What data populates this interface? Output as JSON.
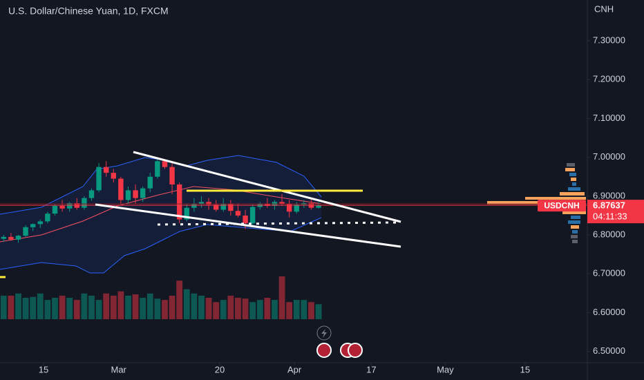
{
  "chart_data": {
    "type": "candlestick",
    "title": "U.S. Dollar/Chinese Yuan, 1D, FXCM",
    "currency": "CNH",
    "symbol": "USDCNH",
    "last_price": 6.87637,
    "countdown": "04:11:33",
    "up_color": "#089981",
    "down_color": "#f23645",
    "ylim": [
      6.471,
      7.405
    ],
    "yticks": [
      {
        "value": 7.3,
        "label": "7.30000"
      },
      {
        "value": 7.2,
        "label": "7.20000"
      },
      {
        "value": 7.1,
        "label": "7.10000"
      },
      {
        "value": 7.0,
        "label": "7.00000"
      },
      {
        "value": 6.9,
        "label": "6.90000"
      },
      {
        "value": 6.8,
        "label": "6.80000"
      },
      {
        "value": 6.7,
        "label": "6.70000"
      },
      {
        "value": 6.6,
        "label": "6.60000"
      },
      {
        "value": 6.5,
        "label": "6.50000"
      }
    ],
    "xlim": [
      -0.5,
      79.7
    ],
    "xticks": [
      {
        "value": 5.44,
        "label": "15"
      },
      {
        "value": 15.7,
        "label": "Mar"
      },
      {
        "value": 29.5,
        "label": "20"
      },
      {
        "value": 39.7,
        "label": "Apr"
      },
      {
        "value": 50.2,
        "label": "17"
      },
      {
        "value": 60.3,
        "label": "May"
      },
      {
        "value": 71.2,
        "label": "15"
      }
    ],
    "open": [
      6.79,
      6.795,
      6.788,
      6.798,
      6.82,
      6.828,
      6.835,
      6.855,
      6.875,
      6.868,
      6.882,
      6.87,
      6.895,
      6.915,
      6.975,
      6.96,
      6.945,
      6.89,
      6.915,
      6.895,
      6.92,
      6.95,
      6.99,
      6.975,
      6.93,
      6.84,
      6.87,
      6.88,
      6.885,
      6.878,
      6.865,
      6.88,
      6.862,
      6.85,
      6.83,
      6.872,
      6.88,
      6.875,
      6.885,
      6.88,
      6.86,
      6.878,
      6.882,
      6.87
    ],
    "high": [
      6.8,
      6.805,
      6.8,
      6.825,
      6.83,
      6.84,
      6.86,
      6.88,
      6.89,
      6.885,
      6.895,
      6.9,
      6.92,
      6.985,
      6.99,
      6.97,
      6.95,
      6.925,
      6.93,
      6.925,
      6.96,
      7.0,
      6.995,
      6.985,
      6.935,
      6.88,
      6.895,
      6.9,
      6.895,
      6.89,
      6.895,
      6.89,
      6.88,
      6.865,
      6.88,
      6.885,
      6.895,
      6.89,
      6.905,
      6.89,
      6.885,
      6.89,
      6.892,
      6.885
    ],
    "low": [
      6.782,
      6.785,
      6.78,
      6.795,
      6.81,
      6.818,
      6.83,
      6.85,
      6.86,
      6.86,
      6.865,
      6.865,
      6.888,
      6.91,
      6.95,
      6.935,
      6.88,
      6.88,
      6.88,
      6.885,
      6.91,
      6.945,
      6.97,
      6.905,
      6.83,
      6.835,
      6.86,
      6.87,
      6.865,
      6.86,
      6.86,
      6.85,
      6.845,
      6.815,
      6.825,
      6.865,
      6.87,
      6.865,
      6.875,
      6.845,
      6.855,
      6.87,
      6.865,
      6.868
    ],
    "close": [
      6.795,
      6.788,
      6.798,
      6.82,
      6.828,
      6.835,
      6.855,
      6.875,
      6.868,
      6.882,
      6.87,
      6.895,
      6.915,
      6.975,
      6.96,
      6.945,
      6.89,
      6.915,
      6.895,
      6.92,
      6.95,
      6.99,
      6.975,
      6.93,
      6.84,
      6.87,
      6.88,
      6.885,
      6.878,
      6.865,
      6.88,
      6.862,
      6.85,
      6.83,
      6.872,
      6.88,
      6.875,
      6.885,
      6.88,
      6.86,
      6.878,
      6.882,
      6.87,
      6.876
    ],
    "volume": [
      55,
      55,
      60,
      50,
      52,
      60,
      45,
      50,
      55,
      50,
      45,
      60,
      55,
      45,
      60,
      55,
      65,
      55,
      58,
      50,
      60,
      48,
      45,
      55,
      90,
      70,
      60,
      55,
      50,
      40,
      45,
      55,
      50,
      48,
      40,
      45,
      50,
      45,
      100,
      40,
      45,
      45,
      40,
      35
    ]
  }
}
